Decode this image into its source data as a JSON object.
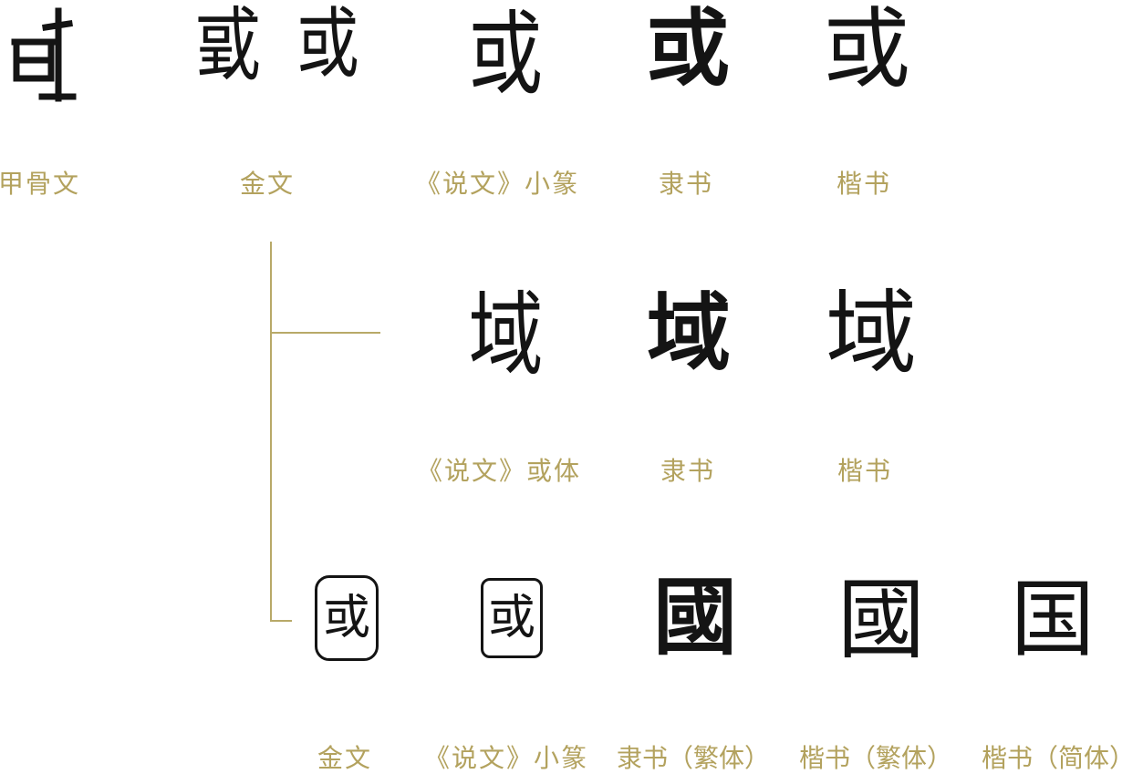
{
  "colors": {
    "label": "#b3a25e",
    "connector": "#b8a968",
    "glyph": "#141414"
  },
  "row1": {
    "glyphs": {
      "jinwen_1": "戜",
      "jinwen_2": "或",
      "xiaozhuan": "或",
      "lishu": "或",
      "kaishu": "或"
    },
    "labels": {
      "jiaguwen": "甲骨文",
      "jinwen": "金文",
      "xiaozhuan": "《说文》小篆",
      "lishu": "隶书",
      "kaishu": "楷书"
    }
  },
  "row2": {
    "glyphs": {
      "huoti": "域",
      "lishu": "域",
      "kaishu": "域"
    },
    "labels": {
      "huoti": "《说文》或体",
      "lishu": "隶书",
      "kaishu": "楷书"
    }
  },
  "row3": {
    "glyphs": {
      "jinwen": "或",
      "xiaozhuan": "或",
      "lishu_fanti": "國",
      "kaishu_fanti": "國",
      "kaishu_jianti": "国"
    },
    "labels": {
      "jinwen": "金文",
      "xiaozhuan": "《说文》小篆",
      "lishu_fanti": "隶书（繁体）",
      "kaishu_fanti": "楷书（繁体）",
      "kaishu_jianti": "楷书（简体）"
    }
  }
}
